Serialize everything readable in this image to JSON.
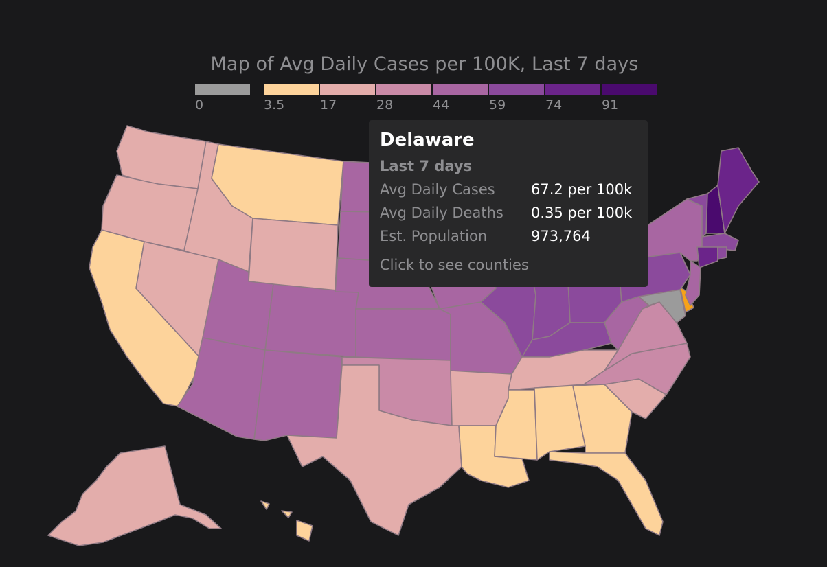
{
  "map": {
    "title": "Map of Avg Daily Cases per 100K, Last 7 days",
    "legend": {
      "tick_labels": [
        "0",
        "3.5",
        "17",
        "28",
        "44",
        "59",
        "74",
        "91"
      ],
      "colors": [
        "#9b9b9b",
        "#fdd39b",
        "#e3adab",
        "#c98aa7",
        "#a866a2",
        "#8b4a9c",
        "#6b248a",
        "#4a0a6e"
      ]
    },
    "highlight_color": "#f6a21a",
    "no_data_color": "#9b9b9b",
    "tooltip": {
      "state": "Delaware",
      "period": "Last 7 days",
      "rows": [
        {
          "label": "Avg Daily Cases",
          "value": "67.2 per 100k"
        },
        {
          "label": "Avg Daily Deaths",
          "value": "0.35 per 100k"
        },
        {
          "label": "Est. Population",
          "value": "973,764"
        }
      ],
      "link": "Click to see counties"
    }
  }
}
